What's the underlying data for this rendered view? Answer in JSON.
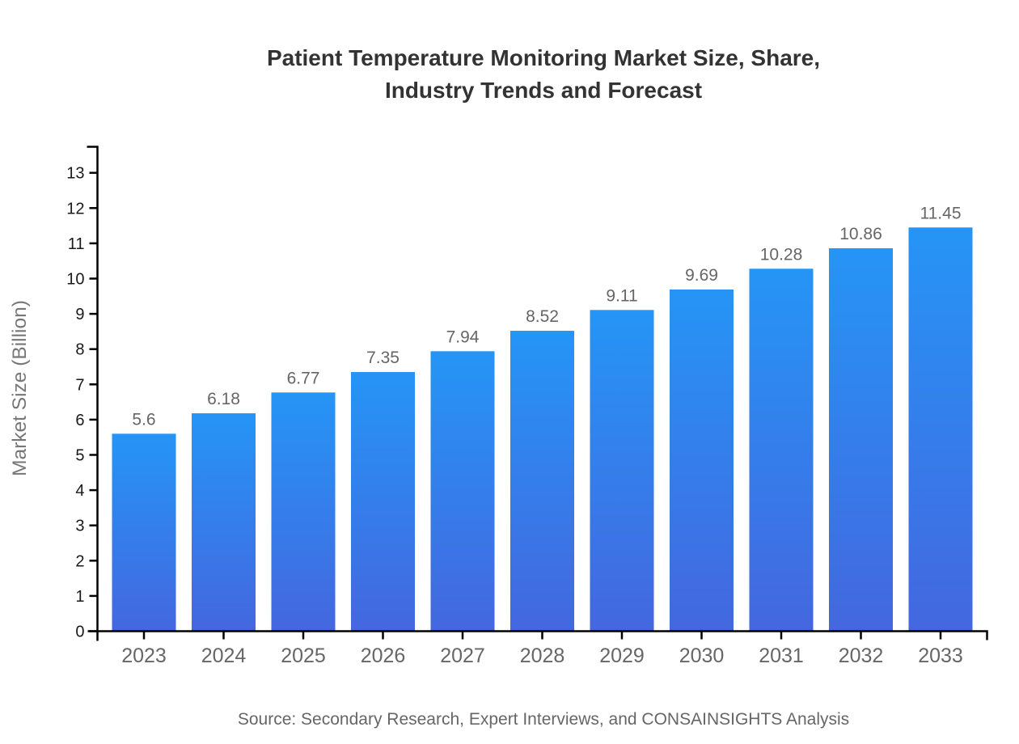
{
  "chart": {
    "title_line1": "Patient Temperature Monitoring Market Size, Share,",
    "title_line2": "Industry Trends and Forecast",
    "source": "Source: Secondary Research, Expert Interviews, and CONSAINSIGHTS Analysis"
  },
  "chart_data": {
    "type": "bar",
    "title": "Patient Temperature Monitoring Market Size, Share, Industry Trends and Forecast",
    "categories": [
      "2023",
      "2024",
      "2025",
      "2026",
      "2027",
      "2028",
      "2029",
      "2030",
      "2031",
      "2032",
      "2033"
    ],
    "values": [
      5.6,
      6.18,
      6.77,
      7.35,
      7.94,
      8.52,
      9.11,
      9.69,
      10.28,
      10.86,
      11.45
    ],
    "value_labels": [
      "5.6",
      "6.18",
      "6.77",
      "7.35",
      "7.94",
      "8.52",
      "9.11",
      "9.69",
      "10.28",
      "10.86",
      "11.45"
    ],
    "xlabel": "",
    "ylabel": "Market Size (Billion)",
    "ylim": [
      0,
      13
    ],
    "ytick_step": 1,
    "yticks": [
      0,
      1,
      2,
      3,
      4,
      5,
      6,
      7,
      8,
      9,
      10,
      11,
      12,
      13
    ],
    "grid": false,
    "legend_position": "none",
    "source_note": "Source: Secondary Research, Expert Interviews, and CONSAINSIGHTS Analysis",
    "colors": {
      "bar_gradient_top": "#2595F6",
      "bar_gradient_bottom": "#4467DF",
      "axis": "#000000",
      "ytick_label": "#1a1a1a",
      "xtick_label": "#666666",
      "value_label": "#666666",
      "ylabel": "#777777",
      "title": "#333333",
      "source": "#666666"
    }
  }
}
